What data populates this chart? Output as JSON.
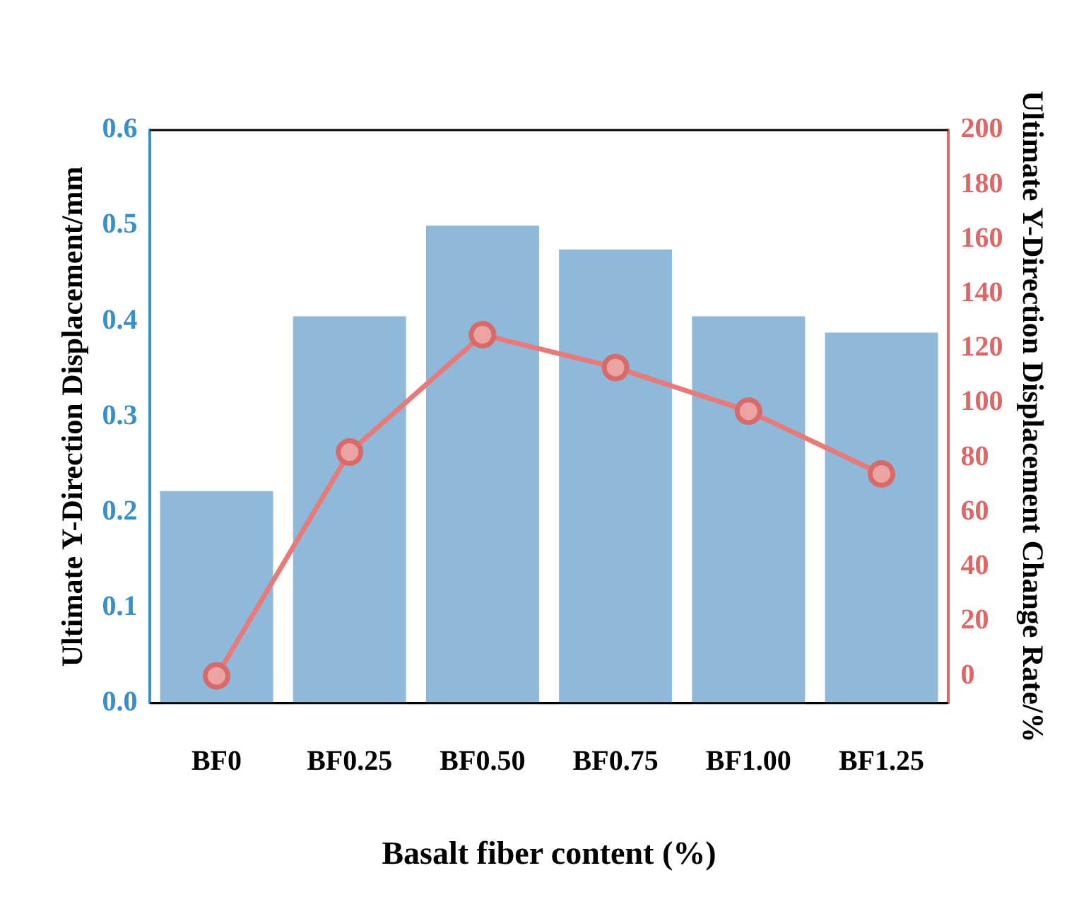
{
  "chart_data": {
    "type": "bar",
    "xlabel": "Basalt fiber content (%)",
    "ylabel": "Ultimate Y-Direction Displacement/mm",
    "y2label": "Ultimate Y-Direction Displacement Change Rate/%",
    "categories": [
      "BF0",
      "BF0.25",
      "BF0.50",
      "BF0.75",
      "BF1.00",
      "BF1.25"
    ],
    "series": [
      {
        "color": "#8fb9da",
        "values": [
          0.222,
          0.405,
          0.5,
          0.475,
          0.405,
          0.388
        ]
      },
      {
        "type": "line",
        "axis": "y2",
        "color": "#e87a7a",
        "values": [
          0,
          82,
          125,
          113,
          97,
          74
        ]
      }
    ],
    "ylim": [
      0,
      0.6
    ],
    "yticks": [
      {
        "value": 0,
        "label": "0.0"
      },
      0.1,
      0.2,
      0.3,
      0.4,
      0.5,
      0.6
    ],
    "y2lim": [
      -10,
      200
    ],
    "y2ticks": [
      0,
      20,
      40,
      60,
      80,
      100,
      120,
      140,
      160,
      180,
      200
    ],
    "marker": "circle",
    "grid": false,
    "legend": false
  }
}
